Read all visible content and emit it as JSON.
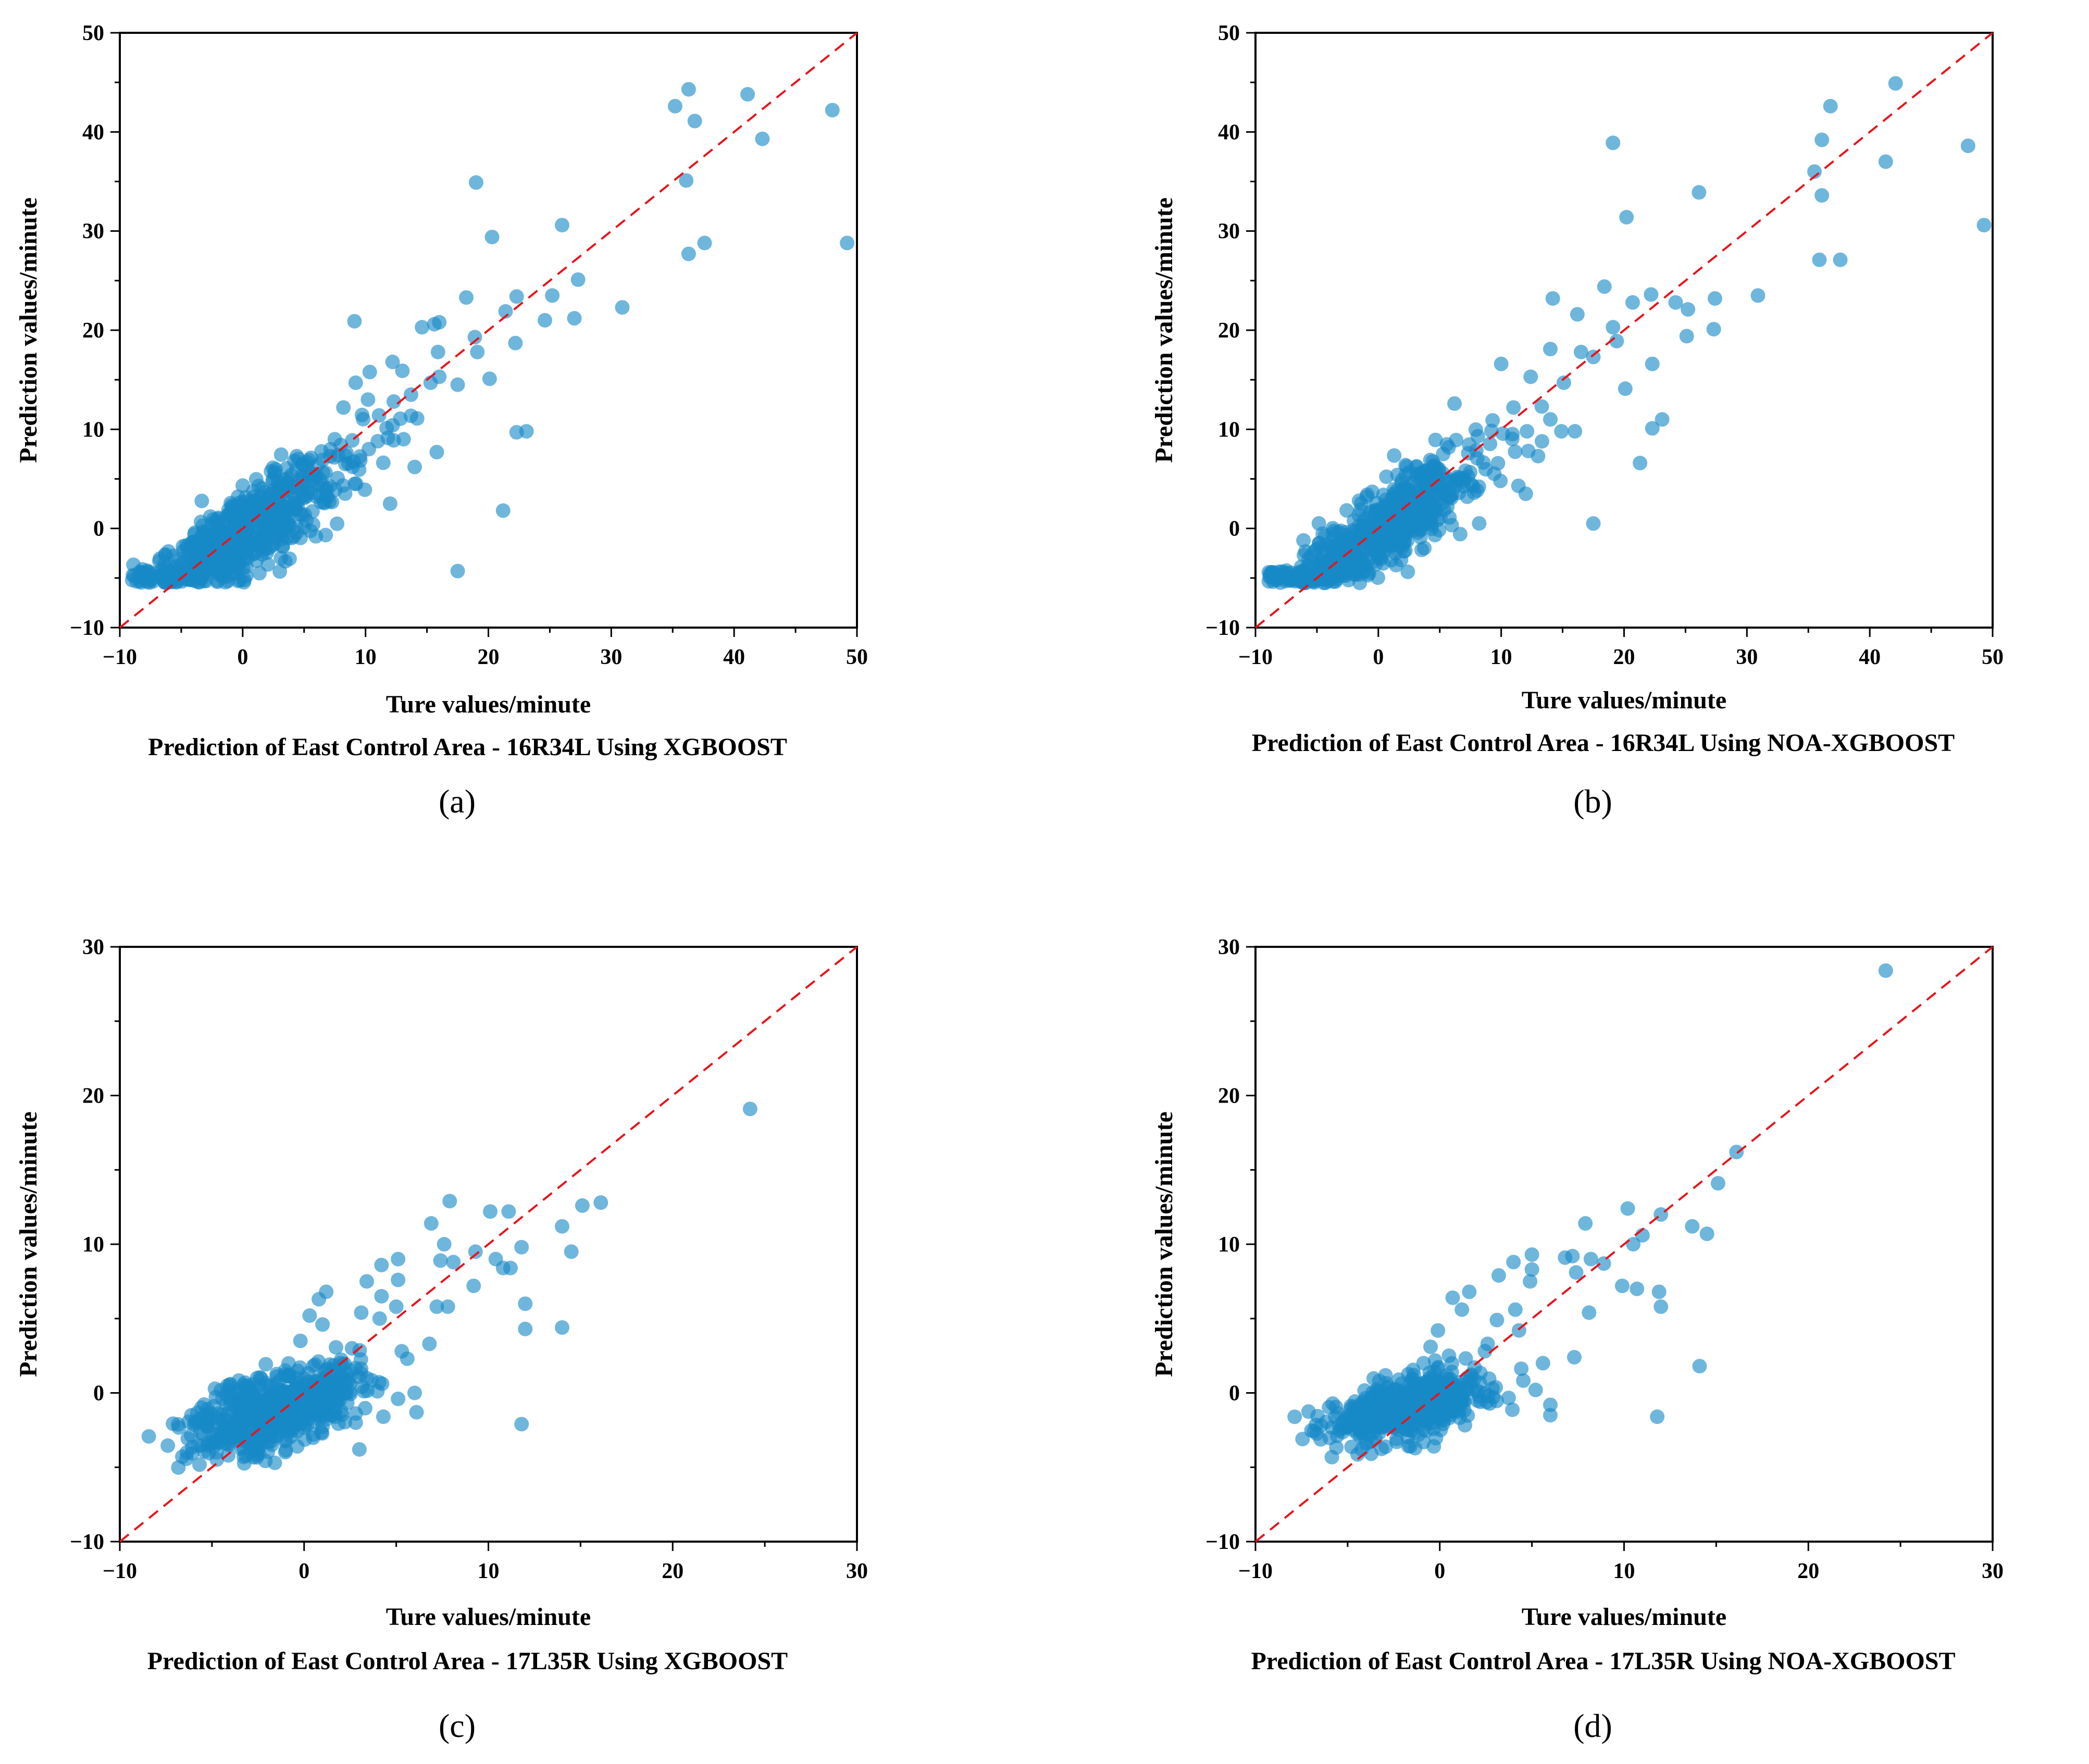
{
  "colors": {
    "points": "#1789c7",
    "reference_line": "#e8141b",
    "axes": "#000000"
  },
  "chart_data": [
    {
      "id": "a",
      "type": "scatter",
      "panel_label": "(a)",
      "caption": "Prediction of East Control Area - 16R34L Using XGBOOST",
      "xlabel": "Ture values/minute",
      "ylabel": "Prediction values/minute",
      "xlim": [
        -10,
        50
      ],
      "ylim": [
        -10,
        50
      ],
      "xticks": [
        -10,
        0,
        10,
        20,
        30,
        40,
        50
      ],
      "yticks": [
        -10,
        0,
        10,
        20,
        30,
        40,
        50
      ],
      "reference_line": "y = x",
      "cluster": {
        "n": 620,
        "xmean": 0,
        "xsd": 4.2,
        "slope": 0.78,
        "noise": 2.2,
        "seed": 11
      },
      "points": [
        [
          49.2,
          28.8
        ],
        [
          48.0,
          42.2
        ],
        [
          42.3,
          39.3
        ],
        [
          41.1,
          43.8
        ],
        [
          36.3,
          44.3
        ],
        [
          35.2,
          42.6
        ],
        [
          36.8,
          41.1
        ],
        [
          36.1,
          35.1
        ],
        [
          36.3,
          27.7
        ],
        [
          37.6,
          28.8
        ],
        [
          30.9,
          22.3
        ],
        [
          27.3,
          25.1
        ],
        [
          27.0,
          21.2
        ],
        [
          26.0,
          30.6
        ],
        [
          25.2,
          23.5
        ],
        [
          24.6,
          21.0
        ],
        [
          22.3,
          23.4
        ],
        [
          22.2,
          18.7
        ],
        [
          21.4,
          21.9
        ],
        [
          22.3,
          9.7
        ],
        [
          23.1,
          9.8
        ],
        [
          21.2,
          1.8
        ],
        [
          20.3,
          29.4
        ],
        [
          19.0,
          34.9
        ],
        [
          18.9,
          19.3
        ],
        [
          19.1,
          17.8
        ],
        [
          20.1,
          15.1
        ],
        [
          18.2,
          23.3
        ],
        [
          17.5,
          14.5
        ],
        [
          17.5,
          -4.3
        ],
        [
          16.0,
          20.8
        ],
        [
          15.6,
          20.6
        ],
        [
          15.9,
          17.8
        ],
        [
          15.3,
          14.7
        ],
        [
          14.6,
          20.3
        ],
        [
          13.7,
          13.5
        ],
        [
          13.0,
          15.9
        ],
        [
          12.2,
          16.8
        ],
        [
          12.3,
          12.8
        ],
        [
          11.1,
          11.4
        ],
        [
          9.1,
          20.9
        ],
        [
          10.2,
          13.0
        ],
        [
          14.0,
          6.2
        ],
        [
          12.0,
          2.5
        ],
        [
          11.0,
          8.8
        ],
        [
          8.2,
          12.2
        ],
        [
          7.5,
          9.0
        ],
        [
          6.8,
          3.3
        ],
        [
          13.1,
          9.0
        ],
        [
          12.2,
          10.4
        ],
        [
          15.8,
          7.7
        ],
        [
          9.2,
          14.7
        ],
        [
          16.0,
          15.3
        ],
        [
          14.2,
          11.1
        ]
      ]
    },
    {
      "id": "b",
      "type": "scatter",
      "panel_label": "(b)",
      "caption": "Prediction of East Control Area - 16R34L Using NOA-XGBOOST",
      "xlabel": "Ture values/minute",
      "ylabel": "Prediction values/minute",
      "xlim": [
        -10,
        50
      ],
      "ylim": [
        -10,
        50
      ],
      "xticks": [
        -10,
        0,
        10,
        20,
        30,
        40,
        50
      ],
      "yticks": [
        -10,
        0,
        10,
        20,
        30,
        40,
        50
      ],
      "reference_line": "y = x",
      "cluster": {
        "n": 620,
        "xmean": 0,
        "xsd": 4.2,
        "slope": 0.8,
        "noise": 2.0,
        "seed": 23
      },
      "points": [
        [
          49.3,
          30.6
        ],
        [
          48.0,
          38.6
        ],
        [
          42.1,
          44.9
        ],
        [
          41.3,
          37.0
        ],
        [
          36.8,
          42.6
        ],
        [
          36.1,
          39.2
        ],
        [
          35.5,
          36.0
        ],
        [
          36.1,
          33.6
        ],
        [
          35.9,
          27.1
        ],
        [
          37.6,
          27.1
        ],
        [
          30.9,
          23.5
        ],
        [
          27.4,
          23.2
        ],
        [
          27.3,
          20.1
        ],
        [
          25.2,
          22.1
        ],
        [
          25.1,
          19.4
        ],
        [
          24.2,
          22.8
        ],
        [
          26.1,
          33.9
        ],
        [
          20.2,
          31.4
        ],
        [
          19.1,
          38.9
        ],
        [
          22.2,
          23.6
        ],
        [
          20.7,
          22.8
        ],
        [
          18.4,
          24.4
        ],
        [
          19.4,
          18.9
        ],
        [
          19.1,
          20.3
        ],
        [
          20.1,
          14.1
        ],
        [
          22.3,
          16.6
        ],
        [
          22.3,
          10.1
        ],
        [
          23.1,
          11.0
        ],
        [
          21.3,
          6.6
        ],
        [
          17.5,
          0.5
        ],
        [
          17.5,
          17.3
        ],
        [
          16.2,
          21.6
        ],
        [
          16.5,
          17.8
        ],
        [
          16.0,
          9.8
        ],
        [
          14.2,
          23.2
        ],
        [
          14.0,
          18.1
        ],
        [
          13.3,
          12.3
        ],
        [
          12.4,
          15.3
        ],
        [
          12.1,
          9.8
        ],
        [
          11.4,
          4.3
        ],
        [
          11.0,
          12.2
        ],
        [
          10.0,
          16.6
        ],
        [
          9.3,
          10.9
        ],
        [
          8.1,
          9.3
        ],
        [
          14.9,
          9.8
        ],
        [
          15.1,
          14.7
        ],
        [
          14.0,
          11.0
        ],
        [
          13.0,
          7.3
        ],
        [
          12.0,
          3.5
        ],
        [
          6.2,
          12.6
        ]
      ]
    },
    {
      "id": "c",
      "type": "scatter",
      "panel_label": "(c)",
      "caption": "Prediction of East Control Area - 17L35R Using XGBOOST",
      "xlabel": "Ture values/minute",
      "ylabel": "Prediction values/minute",
      "xlim": [
        -10,
        30
      ],
      "ylim": [
        -10,
        30
      ],
      "xticks": [
        -10,
        0,
        10,
        20,
        30
      ],
      "yticks": [
        -10,
        0,
        10,
        20,
        30
      ],
      "reference_line": "y = x",
      "cluster": {
        "n": 560,
        "xmean": -1.6,
        "xsd": 2.2,
        "slope": 0.35,
        "noise": 1.3,
        "seed": 37
      },
      "points": [
        [
          24.2,
          19.1
        ],
        [
          16.1,
          12.8
        ],
        [
          15.1,
          12.6
        ],
        [
          14.0,
          11.2
        ],
        [
          14.5,
          9.5
        ],
        [
          14.0,
          4.4
        ],
        [
          12.0,
          6.0
        ],
        [
          12.0,
          4.3
        ],
        [
          11.8,
          9.8
        ],
        [
          11.8,
          -2.1
        ],
        [
          11.1,
          12.2
        ],
        [
          10.1,
          12.2
        ],
        [
          10.4,
          9.0
        ],
        [
          10.8,
          8.4
        ],
        [
          11.2,
          8.4
        ],
        [
          9.3,
          9.5
        ],
        [
          9.2,
          7.2
        ],
        [
          8.1,
          8.8
        ],
        [
          7.9,
          12.9
        ],
        [
          7.6,
          10.0
        ],
        [
          7.4,
          8.9
        ],
        [
          6.9,
          11.4
        ],
        [
          7.8,
          5.8
        ],
        [
          7.2,
          5.8
        ],
        [
          6.8,
          3.3
        ],
        [
          6.0,
          0.0
        ],
        [
          6.1,
          -1.3
        ],
        [
          5.6,
          2.3
        ],
        [
          5.3,
          2.8
        ],
        [
          5.1,
          9.0
        ],
        [
          5.1,
          7.6
        ],
        [
          5.0,
          5.8
        ],
        [
          4.2,
          8.6
        ],
        [
          4.2,
          6.5
        ],
        [
          4.1,
          5.0
        ],
        [
          3.4,
          7.5
        ],
        [
          3.1,
          5.4
        ],
        [
          2.6,
          3.0
        ],
        [
          2.8,
          -2.0
        ],
        [
          3.0,
          -3.8
        ],
        [
          5.1,
          -0.4
        ],
        [
          4.3,
          -1.6
        ],
        [
          1.2,
          6.8
        ],
        [
          0.8,
          6.3
        ],
        [
          1.0,
          4.6
        ],
        [
          0.3,
          5.2
        ],
        [
          -0.2,
          3.5
        ],
        [
          0.5,
          1.8
        ]
      ]
    },
    {
      "id": "d",
      "type": "scatter",
      "panel_label": "(d)",
      "caption": "Prediction of East Control Area - 17L35R Using NOA-XGBOOST",
      "xlabel": "Ture values/minute",
      "ylabel": "Prediction values/minute",
      "xlim": [
        -10,
        30
      ],
      "ylim": [
        -10,
        30
      ],
      "xticks": [
        -10,
        0,
        10,
        20,
        30
      ],
      "yticks": [
        -10,
        0,
        10,
        20,
        30
      ],
      "reference_line": "y = x",
      "cluster": {
        "n": 560,
        "xmean": -1.6,
        "xsd": 2.2,
        "slope": 0.28,
        "noise": 1.0,
        "seed": 53
      },
      "points": [
        [
          24.2,
          28.4
        ],
        [
          16.1,
          16.2
        ],
        [
          15.1,
          14.1
        ],
        [
          14.5,
          10.7
        ],
        [
          13.7,
          11.2
        ],
        [
          14.1,
          1.8
        ],
        [
          12.0,
          12.0
        ],
        [
          11.9,
          6.8
        ],
        [
          12.0,
          5.8
        ],
        [
          11.8,
          -1.6
        ],
        [
          11.0,
          10.6
        ],
        [
          10.7,
          7.0
        ],
        [
          10.2,
          12.4
        ],
        [
          9.9,
          7.2
        ],
        [
          10.5,
          10.0
        ],
        [
          8.9,
          8.7
        ],
        [
          8.2,
          9.0
        ],
        [
          7.9,
          11.4
        ],
        [
          7.4,
          8.1
        ],
        [
          7.2,
          9.2
        ],
        [
          6.8,
          9.1
        ],
        [
          8.1,
          5.4
        ],
        [
          7.3,
          2.4
        ],
        [
          6.0,
          -0.8
        ],
        [
          6.0,
          -1.5
        ],
        [
          5.6,
          2.0
        ],
        [
          5.2,
          0.2
        ],
        [
          5.0,
          9.3
        ],
        [
          5.0,
          8.3
        ],
        [
          4.9,
          7.5
        ],
        [
          4.0,
          8.8
        ],
        [
          4.1,
          5.6
        ],
        [
          4.3,
          4.2
        ],
        [
          3.2,
          7.9
        ],
        [
          3.1,
          4.9
        ],
        [
          2.6,
          3.3
        ],
        [
          2.2,
          -0.6
        ],
        [
          1.6,
          6.8
        ],
        [
          0.7,
          6.4
        ],
        [
          1.2,
          5.6
        ],
        [
          -0.1,
          4.2
        ],
        [
          0.5,
          2.5
        ],
        [
          -0.5,
          3.1
        ],
        [
          -1.4,
          1.2
        ]
      ]
    }
  ]
}
